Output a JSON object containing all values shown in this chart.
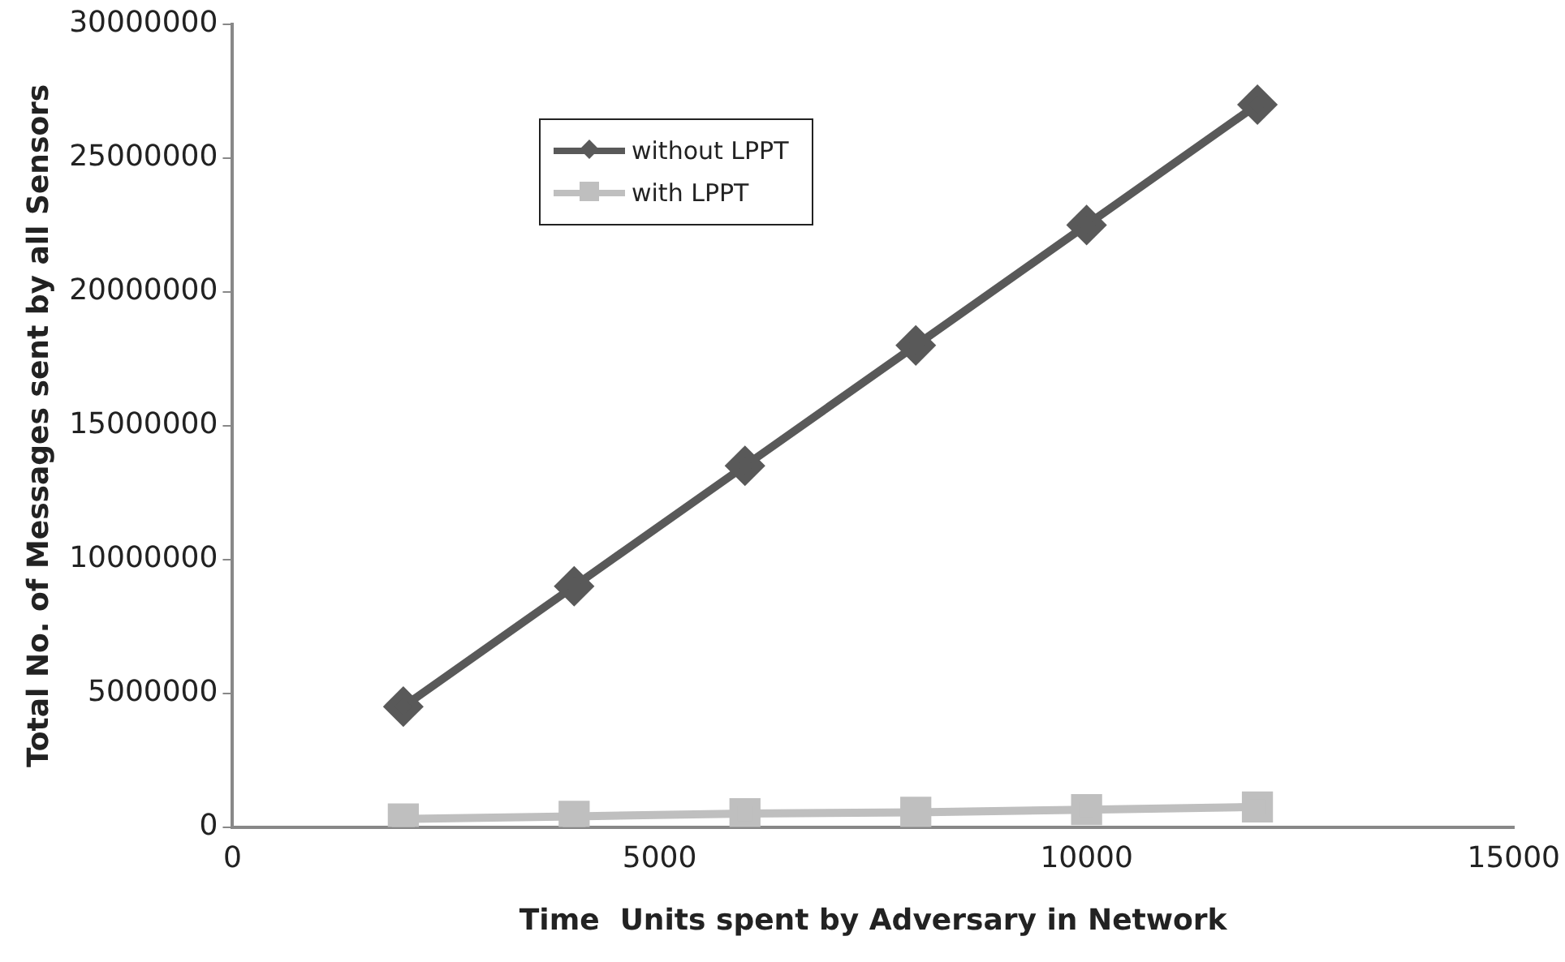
{
  "chart_data": {
    "type": "line",
    "xlabel": "Time  Units spent by Adversary in Network",
    "ylabel": "Total No. of Messages sent by all Sensors",
    "x": [
      2000,
      4000,
      6000,
      8000,
      10000,
      12000
    ],
    "series": [
      {
        "name": "without LPPT",
        "color": "#595959",
        "marker": "diamond",
        "values": [
          4500000,
          9000000,
          13500000,
          18000000,
          22500000,
          27000000
        ]
      },
      {
        "name": "with LPPT",
        "color": "#bfbfbf",
        "marker": "square",
        "values": [
          300000,
          400000,
          500000,
          550000,
          650000,
          750000
        ]
      }
    ],
    "xlim": [
      0,
      15000
    ],
    "xticks": [
      0,
      5000,
      10000,
      15000
    ],
    "ylim": [
      0,
      30000000
    ],
    "yticks": [
      0,
      5000000,
      10000000,
      15000000,
      20000000,
      25000000,
      30000000
    ],
    "grid": false,
    "legend": "top left"
  }
}
